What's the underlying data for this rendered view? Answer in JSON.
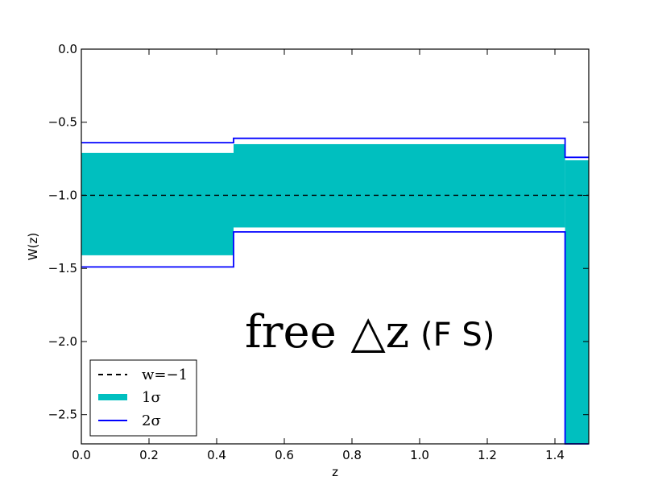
{
  "chart_data": {
    "type": "area",
    "xlabel": "z",
    "ylabel": "W(z)",
    "xlim": [
      0.0,
      1.5
    ],
    "ylim": [
      -2.7,
      0.0
    ],
    "xticks": [
      "0.0",
      "0.2",
      "0.4",
      "0.6",
      "0.8",
      "1.0",
      "1.2",
      "1.4"
    ],
    "yticks": [
      "0.0",
      "−0.5",
      "−1.0",
      "−1.5",
      "−2.0",
      "−2.5"
    ],
    "grid": false,
    "annotation": {
      "math": "free △z",
      "plain": "(F S)"
    },
    "reference_line": {
      "name": "w=−1",
      "y": -1.0,
      "style": "dashed",
      "color": "#000000"
    },
    "bins": [
      {
        "z_min": 0.0,
        "z_max": 0.45,
        "sigma1": [
          -1.41,
          -0.71
        ],
        "sigma2": [
          -1.49,
          -0.64
        ]
      },
      {
        "z_min": 0.45,
        "z_max": 1.43,
        "sigma1": [
          -1.22,
          -0.65
        ],
        "sigma2": [
          -1.25,
          -0.61
        ]
      },
      {
        "z_min": 1.43,
        "z_max": 1.5,
        "sigma1": [
          -2.7,
          -0.76
        ],
        "sigma2": [
          -2.7,
          -0.74
        ]
      }
    ],
    "legend": {
      "position": "lower-left",
      "entries": [
        {
          "label": "w=−1",
          "style": "dashed",
          "color": "#000000"
        },
        {
          "label": "1σ",
          "style": "band",
          "color": "#00bfbf"
        },
        {
          "label": "2σ",
          "style": "line",
          "color": "#0000ff"
        }
      ]
    },
    "colors": {
      "sigma1": "#00bfbf",
      "sigma2": "#0000ff",
      "reference": "#000000"
    }
  }
}
